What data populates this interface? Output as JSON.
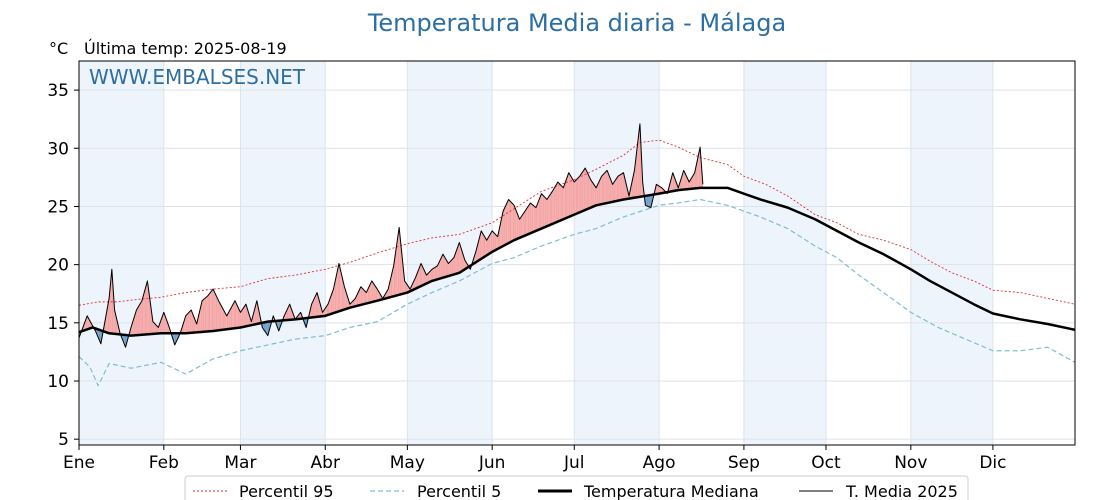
{
  "chart_data": {
    "type": "line",
    "title": "Temperatura Media diaria - Málaga",
    "unit_label": "°C",
    "last_temp_label": "Última temp: 2025-08-19",
    "watermark": "WWW.EMBALSES.NET",
    "x_domain": [
      1,
      365
    ],
    "ylim": [
      4.5,
      37.5
    ],
    "yticks": [
      5,
      10,
      15,
      20,
      25,
      30,
      35
    ],
    "months": [
      {
        "label": "Ene",
        "day": 1
      },
      {
        "label": "Feb",
        "day": 32
      },
      {
        "label": "Mar",
        "day": 60
      },
      {
        "label": "Abr",
        "day": 91
      },
      {
        "label": "May",
        "day": 121
      },
      {
        "label": "Jun",
        "day": 152
      },
      {
        "label": "Jul",
        "day": 182
      },
      {
        "label": "Ago",
        "day": 213
      },
      {
        "label": "Sep",
        "day": 244
      },
      {
        "label": "Oct",
        "day": 274
      },
      {
        "label": "Nov",
        "day": 305
      },
      {
        "label": "Dic",
        "day": 335
      }
    ],
    "shaded_months": [
      "Ene",
      "Mar",
      "May",
      "Jul",
      "Sep",
      "Nov"
    ],
    "grid": true,
    "legend_position": "bottom",
    "colors": {
      "p95": "#e03030",
      "p5": "#7fbcd4",
      "median": "#000000",
      "current": "#000000",
      "above_fill": "#f4a6a6",
      "below_fill": "#6f9fc8",
      "shade": "#eef4fb",
      "title": "#2e6fa3"
    },
    "series": [
      {
        "name": "Percentil 95",
        "style": "dotted-red",
        "points": [
          [
            1,
            16.5
          ],
          [
            8,
            16.8
          ],
          [
            15,
            16.8
          ],
          [
            22,
            17
          ],
          [
            31,
            17.2
          ],
          [
            40,
            17.6
          ],
          [
            50,
            17.9
          ],
          [
            60,
            18.1
          ],
          [
            70,
            18.8
          ],
          [
            80,
            19.1
          ],
          [
            91,
            19.6
          ],
          [
            100,
            20.2
          ],
          [
            110,
            21
          ],
          [
            121,
            21.8
          ],
          [
            130,
            22.3
          ],
          [
            140,
            22.6
          ],
          [
            152,
            23.6
          ],
          [
            160,
            24.8
          ],
          [
            170,
            26.3
          ],
          [
            182,
            27.3
          ],
          [
            190,
            28.2
          ],
          [
            200,
            29.4
          ],
          [
            206,
            30.5
          ],
          [
            213,
            30.7
          ],
          [
            220,
            30.1
          ],
          [
            228,
            29.2
          ],
          [
            238,
            28.6
          ],
          [
            244,
            27.6
          ],
          [
            252,
            26.9
          ],
          [
            260,
            25.9
          ],
          [
            270,
            24.3
          ],
          [
            278,
            23.6
          ],
          [
            286,
            22.6
          ],
          [
            295,
            22.1
          ],
          [
            305,
            21.3
          ],
          [
            312,
            20.3
          ],
          [
            320,
            19.3
          ],
          [
            328,
            18.6
          ],
          [
            335,
            17.8
          ],
          [
            345,
            17.6
          ],
          [
            355,
            17.1
          ],
          [
            365,
            16.6
          ]
        ]
      },
      {
        "name": "Percentil 5",
        "style": "dashed-lightblue",
        "points": [
          [
            1,
            12.1
          ],
          [
            5,
            11.2
          ],
          [
            8,
            9.6
          ],
          [
            12,
            11.5
          ],
          [
            20,
            11.1
          ],
          [
            31,
            11.6
          ],
          [
            40,
            10.6
          ],
          [
            50,
            11.9
          ],
          [
            60,
            12.6
          ],
          [
            70,
            13.1
          ],
          [
            80,
            13.6
          ],
          [
            91,
            13.9
          ],
          [
            100,
            14.6
          ],
          [
            110,
            15.1
          ],
          [
            121,
            16.6
          ],
          [
            130,
            17.6
          ],
          [
            140,
            18.6
          ],
          [
            152,
            20.1
          ],
          [
            160,
            20.6
          ],
          [
            170,
            21.6
          ],
          [
            182,
            22.6
          ],
          [
            190,
            23.1
          ],
          [
            200,
            24.1
          ],
          [
            213,
            25.1
          ],
          [
            220,
            25.3
          ],
          [
            228,
            25.6
          ],
          [
            238,
            25.1
          ],
          [
            244,
            24.6
          ],
          [
            250,
            24.1
          ],
          [
            260,
            23.1
          ],
          [
            270,
            21.6
          ],
          [
            278,
            20.6
          ],
          [
            286,
            19.1
          ],
          [
            295,
            17.6
          ],
          [
            305,
            15.9
          ],
          [
            315,
            14.6
          ],
          [
            325,
            13.6
          ],
          [
            335,
            12.6
          ],
          [
            345,
            12.6
          ],
          [
            355,
            12.9
          ],
          [
            365,
            11.6
          ]
        ]
      },
      {
        "name": "Temperatura Mediana",
        "style": "thick-black",
        "points": [
          [
            1,
            14.2
          ],
          [
            6,
            14.6
          ],
          [
            12,
            14.1
          ],
          [
            20,
            13.9
          ],
          [
            31,
            14.1
          ],
          [
            40,
            14.1
          ],
          [
            50,
            14.3
          ],
          [
            60,
            14.6
          ],
          [
            70,
            15.1
          ],
          [
            80,
            15.3
          ],
          [
            91,
            15.6
          ],
          [
            100,
            16.3
          ],
          [
            110,
            16.9
          ],
          [
            121,
            17.6
          ],
          [
            130,
            18.6
          ],
          [
            140,
            19.3
          ],
          [
            152,
            21.1
          ],
          [
            160,
            22.1
          ],
          [
            170,
            23.1
          ],
          [
            182,
            24.3
          ],
          [
            190,
            25.1
          ],
          [
            200,
            25.6
          ],
          [
            213,
            26.1
          ],
          [
            220,
            26.4
          ],
          [
            228,
            26.6
          ],
          [
            238,
            26.6
          ],
          [
            244,
            26.1
          ],
          [
            250,
            25.6
          ],
          [
            260,
            24.9
          ],
          [
            270,
            23.9
          ],
          [
            278,
            22.9
          ],
          [
            286,
            21.9
          ],
          [
            295,
            20.9
          ],
          [
            305,
            19.6
          ],
          [
            312,
            18.6
          ],
          [
            320,
            17.6
          ],
          [
            328,
            16.6
          ],
          [
            335,
            15.8
          ],
          [
            345,
            15.3
          ],
          [
            355,
            14.9
          ],
          [
            365,
            14.4
          ]
        ]
      },
      {
        "name": "T. Media 2025",
        "style": "thin-black",
        "points": [
          [
            1,
            13.7
          ],
          [
            4,
            15.6
          ],
          [
            7,
            14.3
          ],
          [
            9,
            13.2
          ],
          [
            12,
            17.1
          ],
          [
            13,
            19.6
          ],
          [
            14,
            16.1
          ],
          [
            16,
            14.1
          ],
          [
            18,
            12.9
          ],
          [
            20,
            14.6
          ],
          [
            22,
            16.1
          ],
          [
            24,
            16.9
          ],
          [
            26,
            18.6
          ],
          [
            28,
            15.1
          ],
          [
            30,
            14.6
          ],
          [
            32,
            15.9
          ],
          [
            34,
            14.6
          ],
          [
            36,
            13.1
          ],
          [
            38,
            14.1
          ],
          [
            40,
            15.6
          ],
          [
            42,
            16.1
          ],
          [
            44,
            14.9
          ],
          [
            46,
            16.9
          ],
          [
            48,
            17.3
          ],
          [
            50,
            17.9
          ],
          [
            52,
            16.9
          ],
          [
            55,
            15.6
          ],
          [
            58,
            16.9
          ],
          [
            60,
            15.9
          ],
          [
            62,
            16.6
          ],
          [
            64,
            15.1
          ],
          [
            66,
            16.9
          ],
          [
            68,
            14.6
          ],
          [
            70,
            13.9
          ],
          [
            72,
            15.6
          ],
          [
            74,
            14.3
          ],
          [
            76,
            15.6
          ],
          [
            78,
            16.6
          ],
          [
            80,
            15.3
          ],
          [
            82,
            15.9
          ],
          [
            84,
            14.6
          ],
          [
            86,
            16.6
          ],
          [
            88,
            17.6
          ],
          [
            90,
            15.9
          ],
          [
            92,
            16.6
          ],
          [
            94,
            17.9
          ],
          [
            96,
            20.1
          ],
          [
            98,
            18.1
          ],
          [
            100,
            16.6
          ],
          [
            102,
            17.1
          ],
          [
            104,
            18.1
          ],
          [
            106,
            17.6
          ],
          [
            108,
            18.6
          ],
          [
            110,
            17.9
          ],
          [
            112,
            17.1
          ],
          [
            114,
            17.9
          ],
          [
            116,
            19.9
          ],
          [
            118,
            23.2
          ],
          [
            120,
            18.6
          ],
          [
            122,
            17.9
          ],
          [
            124,
            18.9
          ],
          [
            126,
            20.1
          ],
          [
            128,
            19.1
          ],
          [
            130,
            19.6
          ],
          [
            132,
            19.9
          ],
          [
            134,
            20.9
          ],
          [
            136,
            20.1
          ],
          [
            138,
            20.6
          ],
          [
            140,
            21.9
          ],
          [
            142,
            20.4
          ],
          [
            144,
            19.6
          ],
          [
            146,
            21.1
          ],
          [
            148,
            22.9
          ],
          [
            150,
            22.1
          ],
          [
            152,
            22.9
          ],
          [
            154,
            22.4
          ],
          [
            156,
            24.6
          ],
          [
            158,
            25.6
          ],
          [
            160,
            25.1
          ],
          [
            162,
            23.9
          ],
          [
            164,
            24.6
          ],
          [
            166,
            25.3
          ],
          [
            168,
            24.9
          ],
          [
            170,
            26.1
          ],
          [
            172,
            25.6
          ],
          [
            174,
            26.3
          ],
          [
            176,
            27.1
          ],
          [
            178,
            26.6
          ],
          [
            180,
            27.9
          ],
          [
            182,
            27.1
          ],
          [
            184,
            27.6
          ],
          [
            186,
            28.3
          ],
          [
            188,
            27.3
          ],
          [
            190,
            26.6
          ],
          [
            192,
            27.6
          ],
          [
            194,
            28.1
          ],
          [
            196,
            26.9
          ],
          [
            198,
            27.6
          ],
          [
            200,
            27.9
          ],
          [
            202,
            25.9
          ],
          [
            204,
            28.1
          ],
          [
            206,
            32.1
          ],
          [
            207,
            27.1
          ],
          [
            208,
            25.1
          ],
          [
            210,
            24.9
          ],
          [
            212,
            26.9
          ],
          [
            214,
            26.6
          ],
          [
            216,
            26.1
          ],
          [
            218,
            27.9
          ],
          [
            220,
            26.6
          ],
          [
            222,
            28.1
          ],
          [
            224,
            27.1
          ],
          [
            226,
            27.9
          ],
          [
            228,
            30.1
          ],
          [
            229,
            26.9
          ]
        ]
      }
    ],
    "legend": [
      "Percentil 95",
      "Percentil 5",
      "Temperatura Mediana",
      "T. Media 2025"
    ]
  }
}
